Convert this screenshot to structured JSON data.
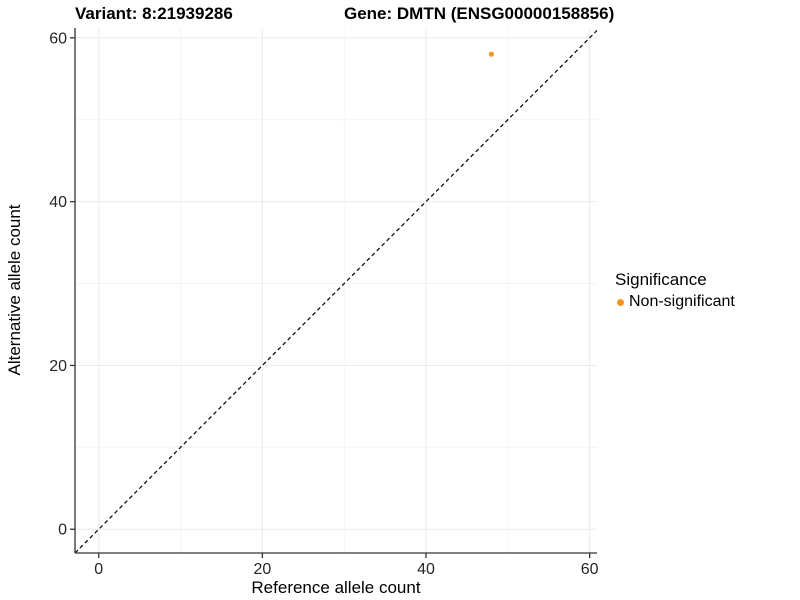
{
  "chart_data": {
    "type": "scatter",
    "title_left": "Variant: 8:21939286",
    "title_right": "Gene: DMTN (ENSG00000158856)",
    "xlabel": "Reference allele count",
    "ylabel": "Alternative allele count",
    "xlim": [
      -2.9,
      60.9
    ],
    "ylim": [
      -2.9,
      61.2
    ],
    "x_ticks": [
      0,
      20,
      40,
      60
    ],
    "y_ticks": [
      0,
      20,
      40,
      60
    ],
    "x_minor_ticks": [
      10,
      30,
      50
    ],
    "y_minor_ticks": [
      10,
      30,
      50
    ],
    "grid": true,
    "identity_line": {
      "style": "dashed",
      "equation": "y = x",
      "color": "#000000"
    },
    "series": [
      {
        "name": "Non-significant",
        "color": "#F7941E",
        "points": [
          {
            "x": 48,
            "y": 58
          }
        ]
      }
    ],
    "legend": {
      "title": "Significance",
      "position": "right",
      "entries": [
        {
          "label": "Non-significant",
          "color": "#F7941E",
          "marker": "circle"
        }
      ]
    }
  },
  "style": {
    "background": "#FFFFFF",
    "axis_line_color": "#333333",
    "tick_label_color": "#262626",
    "axis_title_color": "#000000",
    "major_grid_color": "#EBEBEB",
    "minor_grid_color": "#F4F4F4",
    "point_color": "#F7941E"
  }
}
